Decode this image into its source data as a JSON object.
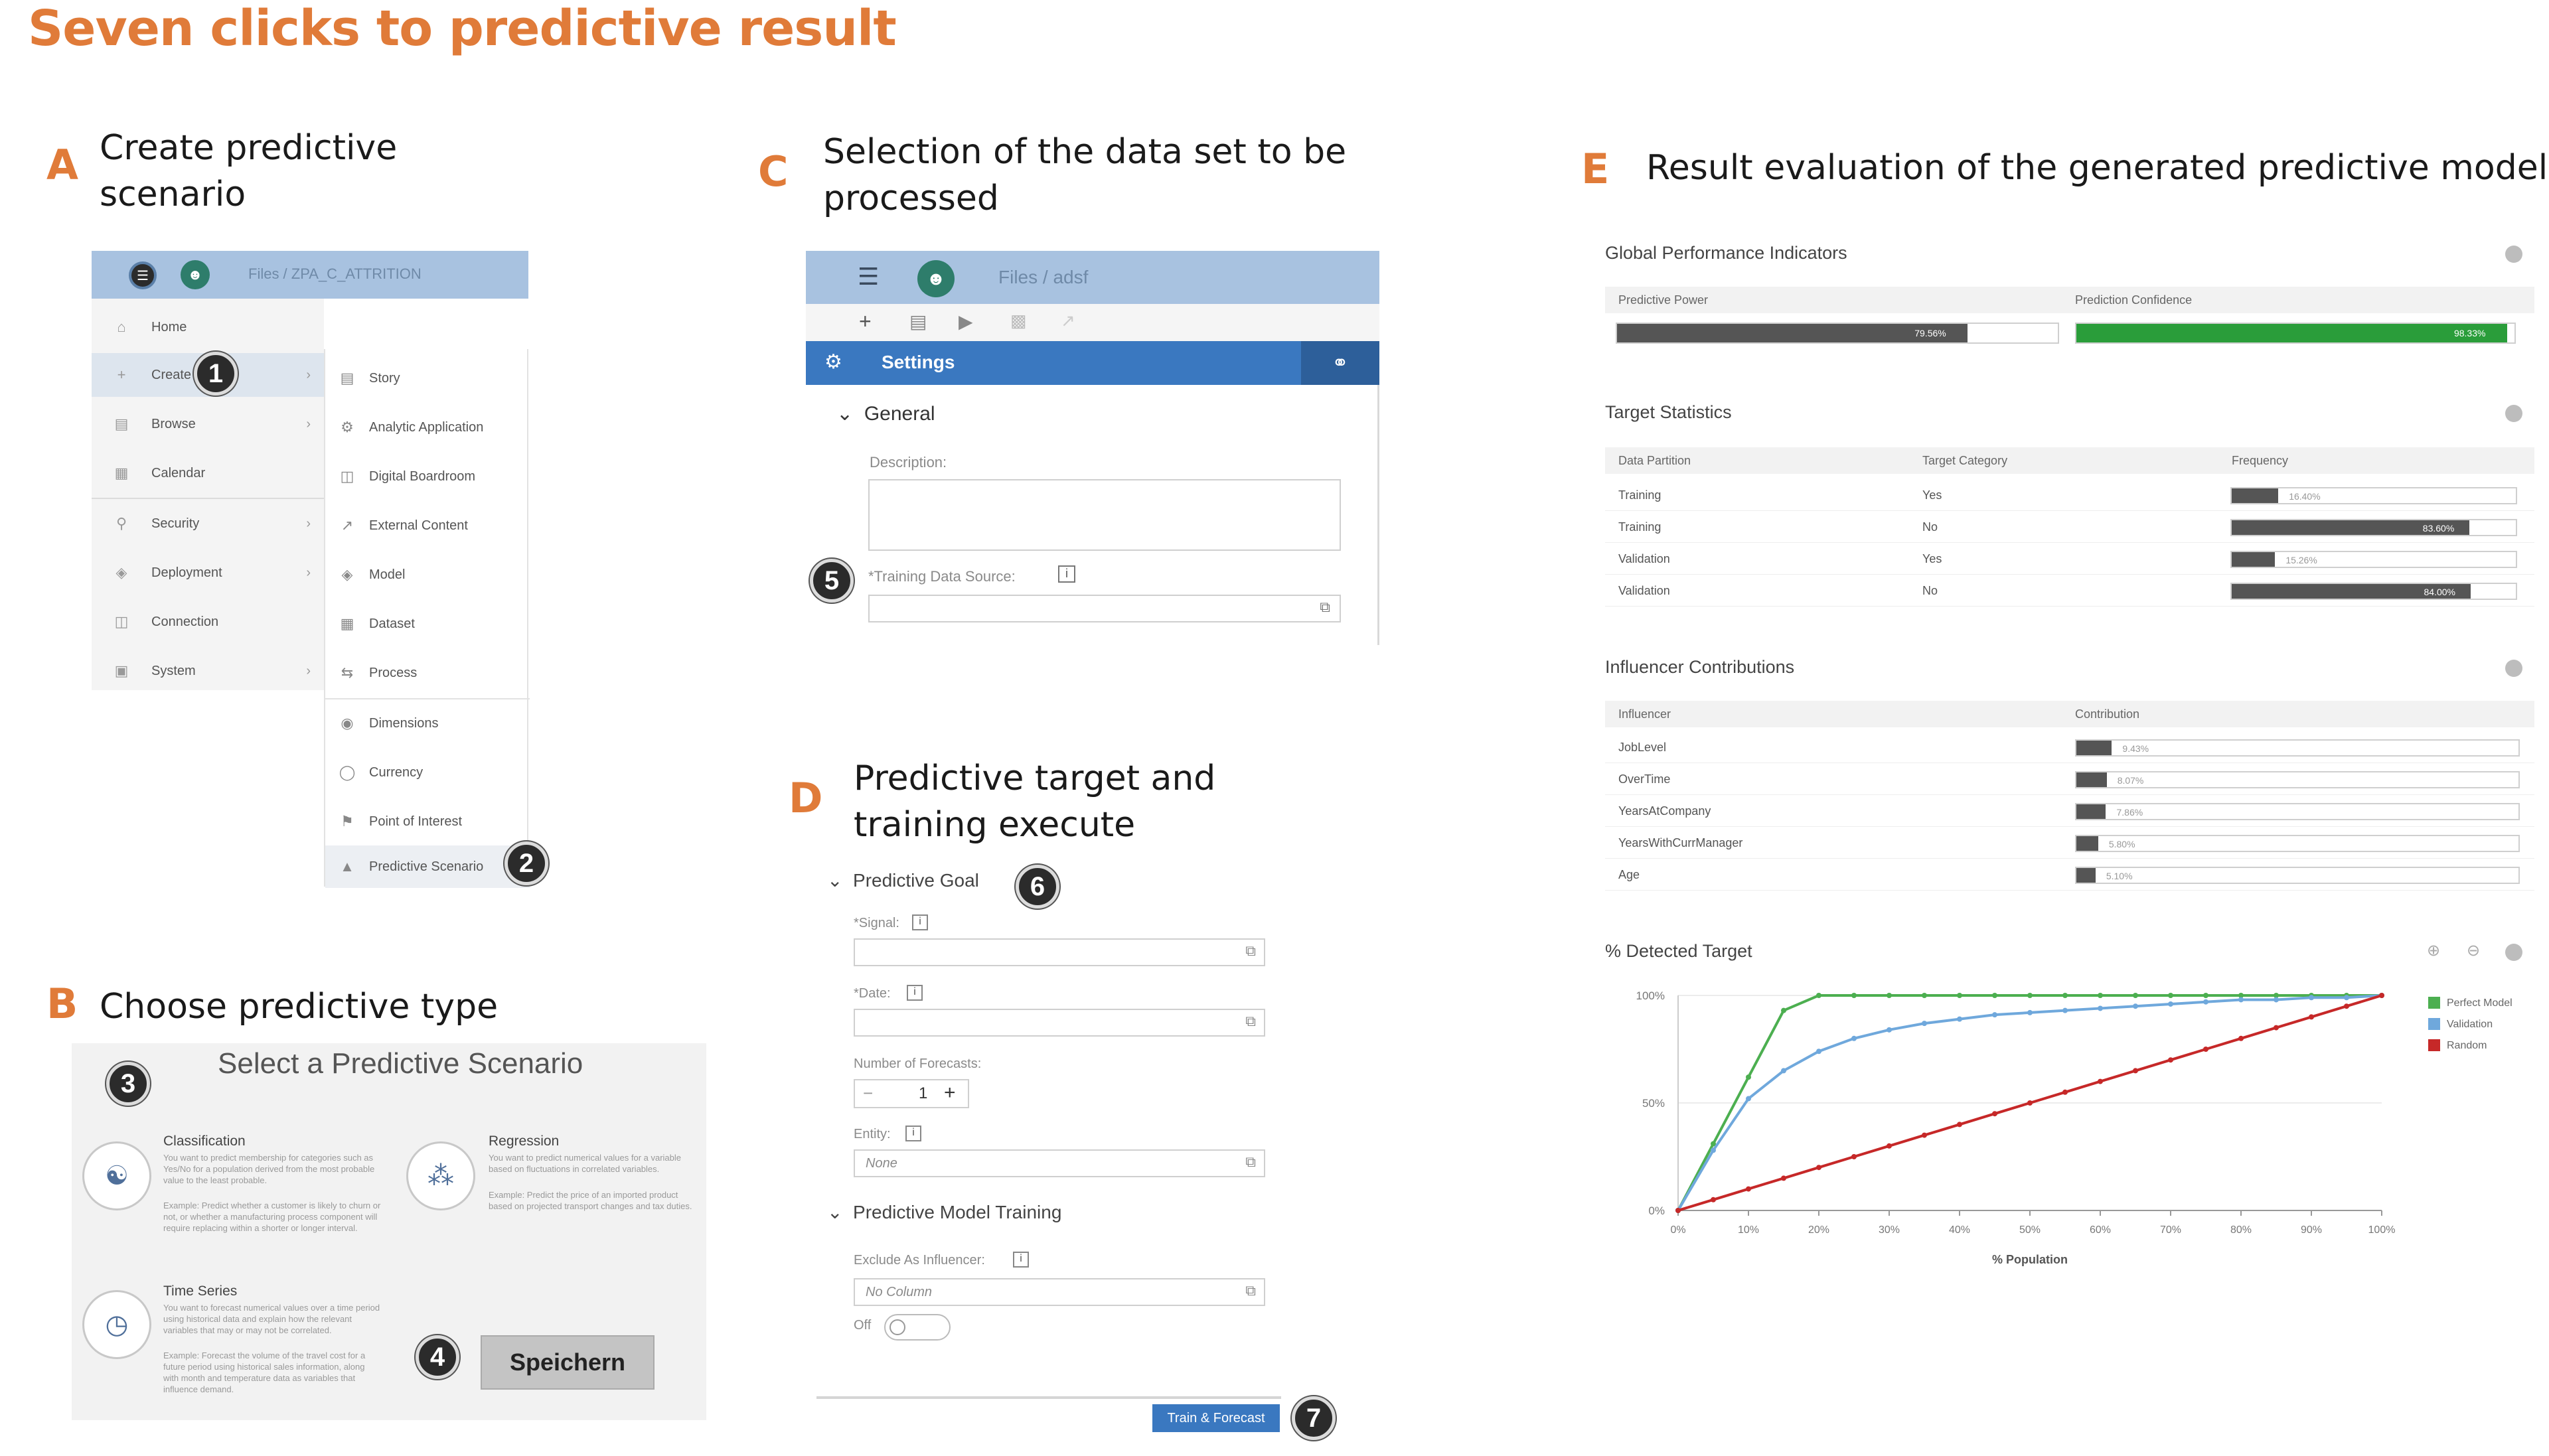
{
  "title": "Seven clicks to predictive result",
  "colors": {
    "accent": "#e07b39",
    "header_blue": "#a8c2e0",
    "settings_blue": "#3a78c0",
    "green": "#2a9d3a",
    "bar_gray": "#555555",
    "perfect": "#4caf50",
    "validation": "#6fa8dc",
    "random": "#c62828"
  },
  "sections": {
    "a": {
      "letter": "A",
      "heading_line1": "Create predictive",
      "heading_line2": "scenario"
    },
    "b": {
      "letter": "B",
      "heading": "Choose predictive type"
    },
    "c": {
      "letter": "C",
      "heading_line1": "Selection of the data set to be",
      "heading_line2": "processed"
    },
    "d": {
      "letter": "D",
      "heading_line1": "Predictive target and",
      "heading_line2": "training execute"
    },
    "e": {
      "letter": "E",
      "heading": "Result evaluation of the generated predictive model"
    }
  },
  "steps": [
    "1",
    "2",
    "3",
    "4",
    "5",
    "6",
    "7"
  ],
  "panel_a": {
    "breadcrumb": "Files  /  ZPA_C_ATTRITION",
    "menu": [
      {
        "label": "Home",
        "icon": "home-icon",
        "arrow": false
      },
      {
        "label": "Create",
        "icon": "plus-icon",
        "arrow": true
      },
      {
        "label": "Browse",
        "icon": "browse-icon",
        "arrow": true
      },
      {
        "label": "Calendar",
        "icon": "calendar-icon",
        "arrow": false
      },
      {
        "label": "Security",
        "icon": "lock-icon",
        "arrow": true
      },
      {
        "label": "Deployment",
        "icon": "deploy-icon",
        "arrow": true
      },
      {
        "label": "Connection",
        "icon": "connection-icon",
        "arrow": false
      },
      {
        "label": "System",
        "icon": "system-icon",
        "arrow": true
      }
    ],
    "submenu": [
      "Story",
      "Analytic Application",
      "Digital Boardroom",
      "External Content",
      "Model",
      "Dataset",
      "Process",
      "Dimensions",
      "Currency",
      "Point of Interest",
      "Predictive Scenario"
    ]
  },
  "panel_b": {
    "title": "Select a Predictive Scenario",
    "classification": {
      "title": "Classification",
      "text": "You want to predict membership for categories such as Yes/No for a population derived from the most probable value to the least probable.",
      "example": "Example: Predict whether a customer is likely to churn or not, or whether a manufacturing process component will require replacing within a shorter or longer interval."
    },
    "regression": {
      "title": "Regression",
      "text": "You want to predict numerical values for a variable based on fluctuations in correlated variables.",
      "example": "Example: Predict the price of an imported product based on projected transport changes and tax duties."
    },
    "time_series": {
      "title": "Time Series",
      "text": "You want to forecast numerical values over a time period using historical data and explain how the relevant variables that may or may not be correlated.",
      "example": "Example: Forecast the volume of the travel cost for a future period using historical sales information, along with month and temperature data as variables that influence demand."
    },
    "save_button": "Speichern"
  },
  "panel_c": {
    "breadcrumb": "Files  /  adsf",
    "settings_label": "Settings",
    "general_label": "General",
    "description_label": "Description:",
    "training_source_label": "*Training Data Source:"
  },
  "panel_d": {
    "goal_label": "Predictive Goal",
    "signal_label": "*Signal:",
    "date_label": "*Date:",
    "forecasts_label": "Number of Forecasts:",
    "forecasts_value": "1",
    "minus": "−",
    "plus": "+",
    "entity_label": "Entity:",
    "entity_value": "None",
    "training_label": "Predictive Model Training",
    "exclude_label": "Exclude As Influencer:",
    "exclude_value": "No Column",
    "toggle_label": "Off",
    "train_button": "Train & Forecast"
  },
  "panel_e": {
    "gpi": {
      "title": "Global Performance Indicators",
      "predictive_power_label": "Predictive Power",
      "predictive_power_value": "79.56%",
      "predictive_power_frac": 0.7956,
      "prediction_confidence_label": "Prediction Confidence",
      "prediction_confidence_value": "98.33%",
      "prediction_confidence_frac": 0.9833
    },
    "target_stats": {
      "title": "Target Statistics",
      "headers": [
        "Data Partition",
        "Target Category",
        "Frequency"
      ],
      "rows": [
        {
          "partition": "Training",
          "category": "Yes",
          "value": "16.40%",
          "frac": 0.164
        },
        {
          "partition": "Training",
          "category": "No",
          "value": "83.60%",
          "frac": 0.836
        },
        {
          "partition": "Validation",
          "category": "Yes",
          "value": "15.26%",
          "frac": 0.1526
        },
        {
          "partition": "Validation",
          "category": "No",
          "value": "84.00%",
          "frac": 0.84
        }
      ]
    },
    "influencers": {
      "title": "Influencer Contributions",
      "headers": [
        "Influencer",
        "Contribution"
      ],
      "rows": [
        {
          "name": "JobLevel",
          "value": "9.43%",
          "frac": 0.0943
        },
        {
          "name": "OverTime",
          "value": "8.07%",
          "frac": 0.0807
        },
        {
          "name": "YearsAtCompany",
          "value": "7.86%",
          "frac": 0.0786
        },
        {
          "name": "YearsWithCurrManager",
          "value": "5.80%",
          "frac": 0.058
        },
        {
          "name": "Age",
          "value": "5.10%",
          "frac": 0.051
        }
      ]
    }
  },
  "chart_data": {
    "type": "line",
    "title": "% Detected Target",
    "xlabel": "% Population",
    "ylabel": "",
    "x": [
      0,
      5,
      10,
      15,
      20,
      25,
      30,
      35,
      40,
      45,
      50,
      55,
      60,
      65,
      70,
      75,
      80,
      85,
      90,
      95,
      100
    ],
    "x_tick_labels": [
      "0%",
      "10%",
      "20%",
      "30%",
      "40%",
      "50%",
      "60%",
      "70%",
      "80%",
      "90%",
      "100%"
    ],
    "y_tick_labels": [
      "0%",
      "50%",
      "100%"
    ],
    "ylim": [
      0,
      100
    ],
    "xlim": [
      0,
      100
    ],
    "legend_position": "top-right",
    "series": [
      {
        "name": "Perfect Model",
        "color": "#4caf50",
        "values": [
          0,
          31,
          62,
          93,
          100,
          100,
          100,
          100,
          100,
          100,
          100,
          100,
          100,
          100,
          100,
          100,
          100,
          100,
          100,
          100,
          100
        ]
      },
      {
        "name": "Validation",
        "color": "#6fa8dc",
        "values": [
          0,
          28,
          52,
          65,
          74,
          80,
          84,
          87,
          89,
          91,
          92,
          93,
          94,
          95,
          96,
          97,
          98,
          98,
          99,
          99,
          100
        ]
      },
      {
        "name": "Random",
        "color": "#c62828",
        "values": [
          0,
          5,
          10,
          15,
          20,
          25,
          30,
          35,
          40,
          45,
          50,
          55,
          60,
          65,
          70,
          75,
          80,
          85,
          90,
          95,
          100
        ]
      }
    ]
  }
}
